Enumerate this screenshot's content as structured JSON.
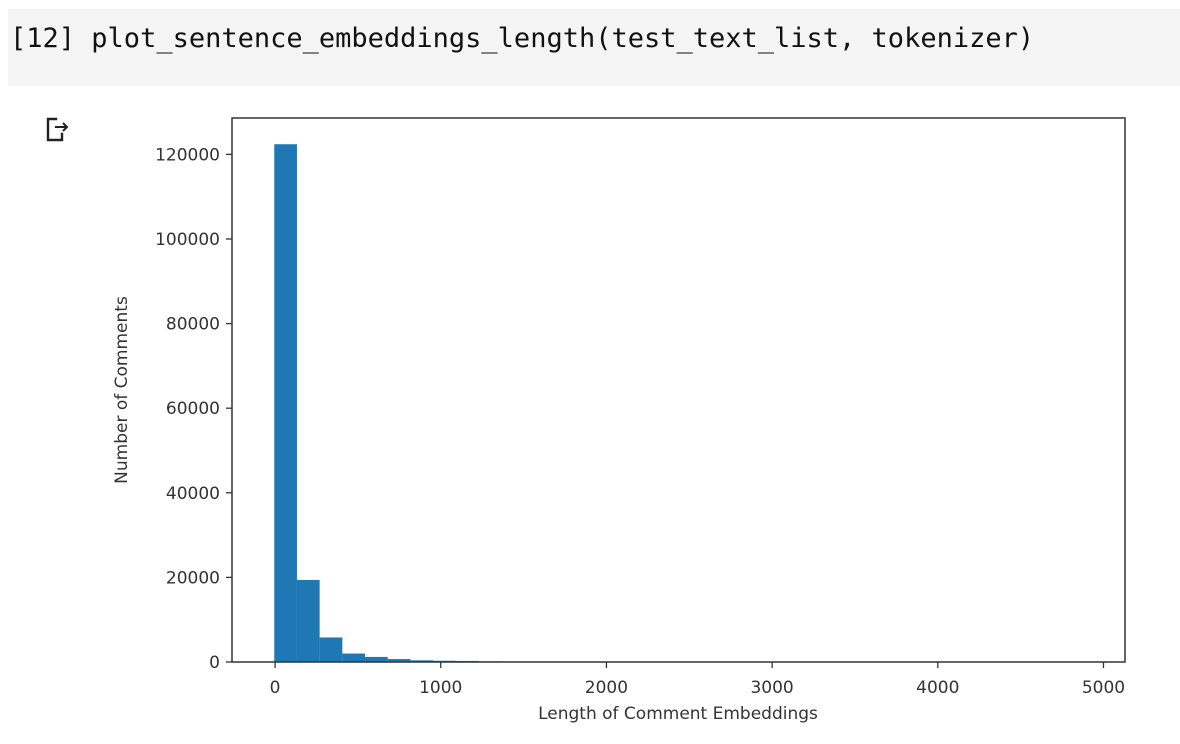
{
  "cell": {
    "prompt": "[12]",
    "code": "plot_sentence_embeddings_length(test_text_list, tokenizer)"
  },
  "output": {
    "icon": "output-arrow-icon"
  },
  "chart_data": {
    "type": "bar",
    "xlabel": "Length of Comment Embeddings",
    "ylabel": "Number of Comments",
    "xlim": [
      -260,
      5130
    ],
    "ylim": [
      0,
      128600
    ],
    "xticks": [
      0,
      1000,
      2000,
      3000,
      4000,
      5000
    ],
    "yticks": [
      0,
      20000,
      40000,
      60000,
      80000,
      100000,
      120000
    ],
    "bin_edges": [
      -5,
      132,
      269,
      406,
      543,
      680,
      817,
      954,
      1091,
      1228,
      1365
    ],
    "values": [
      122400,
      19400,
      5800,
      2000,
      1200,
      700,
      400,
      300,
      250,
      150
    ],
    "bar_color": "#1f77b4",
    "grid": false
  }
}
